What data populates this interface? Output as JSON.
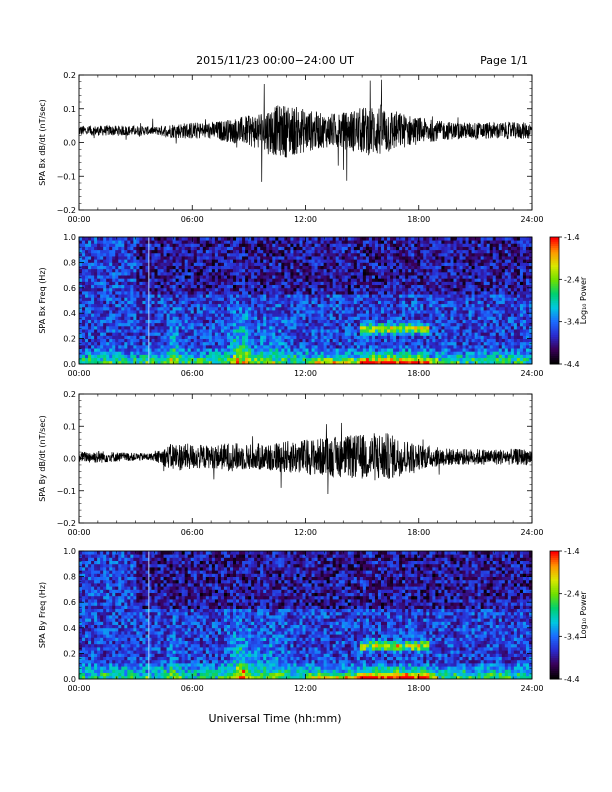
{
  "header": {
    "title": "2015/11/23  00:00−24:00 UT",
    "page": "Page 1/1"
  },
  "xlabel": "Universal Time (hh:mm)",
  "chart_data": [
    {
      "type": "line",
      "ylabel": "SPA Bx dB/dt (nT/sec)",
      "xlim": [
        0,
        24
      ],
      "ylim": [
        -0.2,
        0.2
      ],
      "xticks": [
        "00:00",
        "06:00",
        "12:00",
        "18:00",
        "24:00"
      ],
      "yticks": [
        "0.2",
        "0.1",
        "0.0",
        "−0.1",
        "−0.2"
      ],
      "series": [
        {
          "values_note_free": true,
          "x": [
            0,
            1,
            2,
            3,
            4,
            5,
            6,
            7,
            8,
            9,
            10,
            11,
            12,
            13,
            14,
            15,
            16,
            17,
            18,
            19,
            20,
            21,
            22,
            23,
            24
          ],
          "baseline": [
            0.035,
            0.035,
            0.035,
            0.035,
            0.035,
            0.035,
            0.035,
            0.035,
            0.035,
            0.035,
            0.035,
            0.035,
            0.035,
            0.035,
            0.035,
            0.035,
            0.035,
            0.035,
            0.035,
            0.035,
            0.035,
            0.035,
            0.035,
            0.035,
            0.035
          ],
          "amplitude": [
            0.015,
            0.015,
            0.015,
            0.015,
            0.012,
            0.022,
            0.025,
            0.025,
            0.035,
            0.045,
            0.07,
            0.08,
            0.065,
            0.05,
            0.055,
            0.07,
            0.08,
            0.055,
            0.04,
            0.03,
            0.025,
            0.025,
            0.025,
            0.025,
            0.025
          ]
        }
      ]
    },
    {
      "type": "heatmap",
      "ylabel": "SPA Bx Freq (Hz)",
      "xlim": [
        0,
        24
      ],
      "ylim": [
        0.0,
        1.0
      ],
      "xticks": [
        "00:00",
        "06:00",
        "12:00",
        "18:00",
        "24:00"
      ],
      "yticks": [
        "1.0",
        "0.8",
        "0.6",
        "0.4",
        "0.2",
        "0.0"
      ],
      "colorbar": {
        "label": "Log₁₀ Power",
        "range": [
          -4.4,
          -1.4
        ],
        "ticks": [
          "-1.4",
          "-2.4",
          "-3.4",
          "-4.4"
        ]
      },
      "features": {
        "line_at_hour": 3.7,
        "band_hours": [
          14.8,
          18.5
        ],
        "band_freq_hz": 0.28
      }
    },
    {
      "type": "line",
      "ylabel": "SPA By dB/dt (nT/sec)",
      "xlim": [
        0,
        24
      ],
      "ylim": [
        -0.2,
        0.2
      ],
      "xticks": [
        "00:00",
        "06:00",
        "12:00",
        "18:00",
        "24:00"
      ],
      "yticks": [
        "0.2",
        "0.1",
        "0.0",
        "−0.1",
        "−0.2"
      ],
      "series": [
        {
          "x": [
            0,
            1,
            2,
            3,
            4,
            5,
            6,
            7,
            8,
            9,
            10,
            11,
            12,
            13,
            14,
            15,
            16,
            17,
            18,
            19,
            20,
            21,
            22,
            23,
            24
          ],
          "baseline": [
            0.005,
            0.005,
            0.005,
            0.005,
            0.005,
            0.005,
            0.005,
            0.005,
            0.005,
            0.005,
            0.005,
            0.005,
            0.005,
            0.005,
            0.005,
            0.005,
            0.005,
            0.005,
            0.005,
            0.005,
            0.005,
            0.005,
            0.005,
            0.005,
            0.005
          ],
          "amplitude": [
            0.015,
            0.02,
            0.015,
            0.012,
            0.012,
            0.045,
            0.04,
            0.035,
            0.045,
            0.04,
            0.045,
            0.05,
            0.055,
            0.06,
            0.065,
            0.07,
            0.08,
            0.06,
            0.04,
            0.03,
            0.025,
            0.025,
            0.025,
            0.025,
            0.025
          ]
        }
      ]
    },
    {
      "type": "heatmap",
      "ylabel": "SPA By Freq (Hz)",
      "xlim": [
        0,
        24
      ],
      "ylim": [
        0.0,
        1.0
      ],
      "xticks": [
        "00:00",
        "06:00",
        "12:00",
        "18:00",
        "24:00"
      ],
      "yticks": [
        "1.0",
        "0.8",
        "0.6",
        "0.4",
        "0.2",
        "0.0"
      ],
      "colorbar": {
        "label": "Log₁₀ Power",
        "range": [
          -4.4,
          -1.4
        ],
        "ticks": [
          "-1.4",
          "-2.4",
          "-3.4",
          "-4.4"
        ]
      },
      "features": {
        "line_at_hour": 3.7,
        "band_hours": [
          14.8,
          18.5
        ],
        "band_freq_hz": 0.26
      }
    }
  ],
  "colors": {
    "trace": "#000000",
    "colormap": [
      "#000000",
      "#3a0058",
      "#2a2bcf",
      "#1b6bff",
      "#00c8e0",
      "#00d070",
      "#6ee000",
      "#d8e800",
      "#ff9a00",
      "#ff0000"
    ]
  }
}
